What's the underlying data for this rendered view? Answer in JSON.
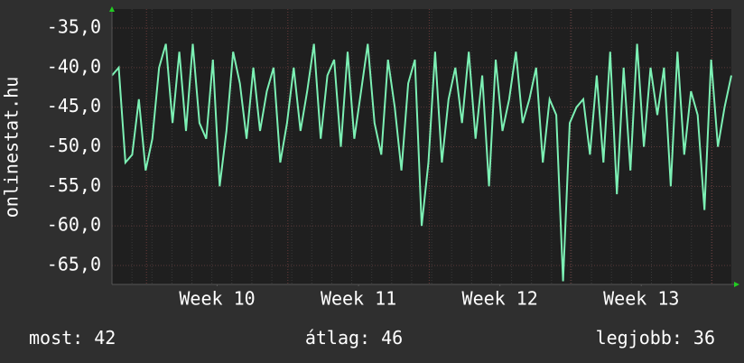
{
  "chart_data": {
    "type": "line",
    "y_label": "onlinestat.hu",
    "ylim": [
      -67.4,
      -32.6
    ],
    "yticks": [
      {
        "value": -35,
        "label": "-35,0"
      },
      {
        "value": -40,
        "label": "-40,0"
      },
      {
        "value": -45,
        "label": "-45,0"
      },
      {
        "value": -50,
        "label": "-50,0"
      },
      {
        "value": -55,
        "label": "-55,0"
      },
      {
        "value": -60,
        "label": "-60,0"
      },
      {
        "value": -65,
        "label": "-65,0"
      }
    ],
    "xlim": [
      0,
      736
    ],
    "xticks": [
      {
        "value": 125,
        "label": "Week 10"
      },
      {
        "value": 293,
        "label": "Week 11"
      },
      {
        "value": 461,
        "label": "Week 12"
      },
      {
        "value": 629,
        "label": "Week 13"
      }
    ],
    "x_major_grid": [
      41,
      209,
      377,
      545,
      713
    ],
    "grid": true,
    "x": [
      0,
      8,
      16,
      24,
      32,
      40,
      48,
      56,
      64,
      72,
      80,
      88,
      96,
      104,
      112,
      120,
      128,
      136,
      144,
      152,
      160,
      168,
      176,
      184,
      192,
      200,
      208,
      216,
      224,
      232,
      240,
      248,
      256,
      264,
      272,
      280,
      288,
      296,
      304,
      312,
      320,
      328,
      336,
      344,
      352,
      360,
      368,
      376,
      384,
      392,
      400,
      408,
      416,
      424,
      432,
      440,
      448,
      456,
      464,
      472,
      480,
      488,
      496,
      504,
      512,
      520,
      528,
      536,
      544,
      552,
      560,
      568,
      576,
      584,
      592,
      600,
      608,
      616,
      624,
      632,
      640,
      648,
      656,
      664,
      672,
      680,
      688,
      696,
      704,
      712,
      720,
      728,
      736
    ],
    "series": [
      {
        "name": "onlinestat.hu",
        "color": "#7cf0b4",
        "values": [
          -41,
          -40,
          -52,
          -51,
          -44,
          -53,
          -49,
          -40,
          -37,
          -47,
          -38,
          -48,
          -37,
          -47,
          -49,
          -39,
          -55,
          -48,
          -38,
          -42,
          -49,
          -40,
          -48,
          -43,
          -40,
          -52,
          -47,
          -40,
          -48,
          -43,
          -37,
          -49,
          -41,
          -39,
          -50,
          -38,
          -49,
          -43,
          -37,
          -47,
          -51,
          -39,
          -45,
          -53,
          -42,
          -39,
          -60,
          -52,
          -38,
          -52,
          -44,
          -40,
          -47,
          -38,
          -49,
          -41,
          -55,
          -39,
          -48,
          -44,
          -38,
          -47,
          -44,
          -40,
          -52,
          -44,
          -46,
          -67,
          -47,
          -45,
          -44,
          -51,
          -41,
          -52,
          -38,
          -56,
          -40,
          -53,
          -37,
          -50,
          -40,
          -46,
          -40,
          -55,
          -38,
          -51,
          -43,
          -46,
          -58,
          -39,
          -50,
          -45,
          -41
        ]
      }
    ],
    "stats": [
      {
        "label": "most:",
        "value": 42
      },
      {
        "label": "átlag:",
        "value": 46
      },
      {
        "label": "legjobb:",
        "value": 36
      }
    ]
  }
}
